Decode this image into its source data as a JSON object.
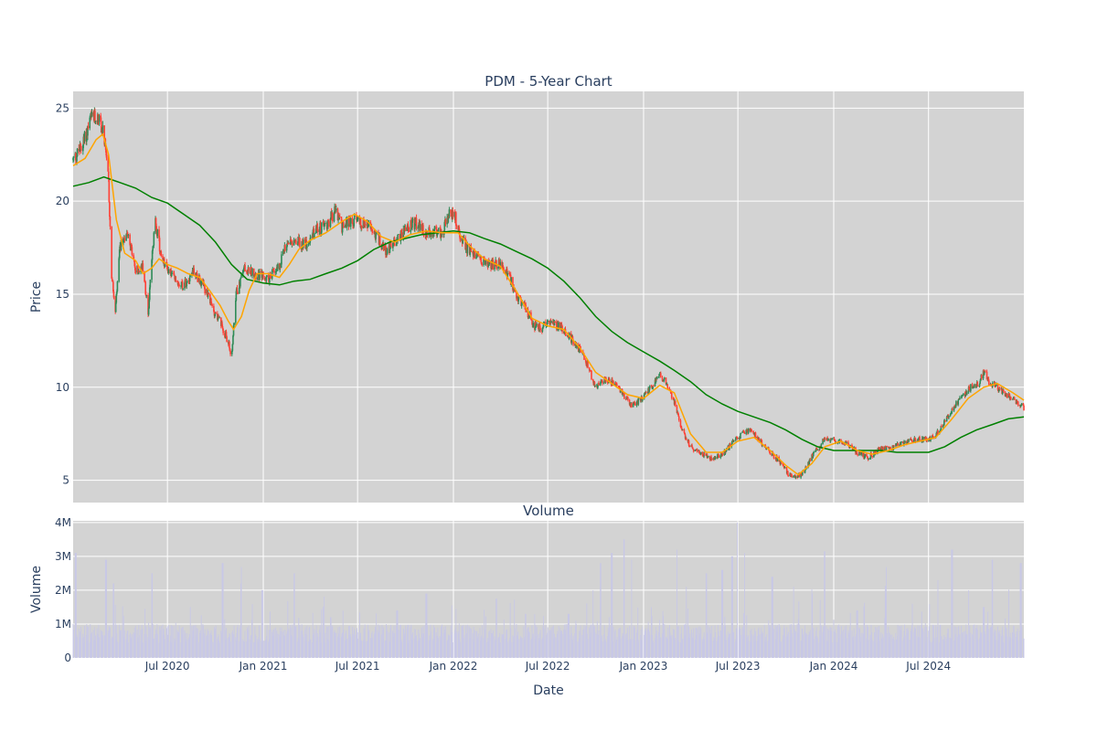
{
  "chart_data": [
    {
      "type": "candlestick",
      "title": "PDM - 5-Year Chart",
      "xlabel": "",
      "ylabel": "Price",
      "ylim": [
        3.8,
        25.9
      ],
      "yticks": [
        5,
        10,
        15,
        20,
        25
      ],
      "xrange": [
        "2020-01-02",
        "2024-12-31"
      ],
      "grid": true,
      "background": "#d3d3d3",
      "colors": {
        "up": "#2e8b57",
        "down": "#ff4136",
        "ma_short": "#ffa500",
        "ma_long": "#008000"
      },
      "close_path": [
        [
          "2020-01-02",
          22.2
        ],
        [
          "2020-01-20",
          23.0
        ],
        [
          "2020-02-05",
          24.4
        ],
        [
          "2020-02-20",
          24.5
        ],
        [
          "2020-03-01",
          23.5
        ],
        [
          "2020-03-10",
          21.0
        ],
        [
          "2020-03-16",
          16.0
        ],
        [
          "2020-03-23",
          14.0
        ],
        [
          "2020-04-01",
          17.5
        ],
        [
          "2020-04-15",
          18.5
        ],
        [
          "2020-05-01",
          16.2
        ],
        [
          "2020-05-15",
          16.5
        ],
        [
          "2020-05-25",
          14.0
        ],
        [
          "2020-06-01",
          16.8
        ],
        [
          "2020-06-08",
          19.0
        ],
        [
          "2020-06-20",
          16.8
        ],
        [
          "2020-07-01",
          16.4
        ],
        [
          "2020-07-15",
          15.8
        ],
        [
          "2020-08-01",
          15.5
        ],
        [
          "2020-08-20",
          16.3
        ],
        [
          "2020-09-10",
          15.3
        ],
        [
          "2020-09-25",
          14.3
        ],
        [
          "2020-10-10",
          13.5
        ],
        [
          "2020-10-25",
          12.5
        ],
        [
          "2020-11-01",
          11.6
        ],
        [
          "2020-11-10",
          15.0
        ],
        [
          "2020-11-25",
          16.4
        ],
        [
          "2020-12-10",
          16.2
        ],
        [
          "2020-12-25",
          16.0
        ],
        [
          "2021-01-10",
          15.8
        ],
        [
          "2021-02-01",
          16.6
        ],
        [
          "2021-02-15",
          17.8
        ],
        [
          "2021-03-01",
          18.0
        ],
        [
          "2021-03-20",
          17.6
        ],
        [
          "2021-04-10",
          18.4
        ],
        [
          "2021-05-01",
          18.7
        ],
        [
          "2021-05-20",
          19.5
        ],
        [
          "2021-06-01",
          18.6
        ],
        [
          "2021-06-20",
          19.0
        ],
        [
          "2021-07-10",
          18.8
        ],
        [
          "2021-07-25",
          18.6
        ],
        [
          "2021-08-10",
          18.0
        ],
        [
          "2021-08-25",
          17.3
        ],
        [
          "2021-09-10",
          17.8
        ],
        [
          "2021-10-01",
          18.5
        ],
        [
          "2021-10-20",
          18.8
        ],
        [
          "2021-11-10",
          18.2
        ],
        [
          "2021-11-25",
          18.4
        ],
        [
          "2021-12-10",
          18.3
        ],
        [
          "2021-12-25",
          19.3
        ],
        [
          "2022-01-05",
          19.1
        ],
        [
          "2022-01-15",
          18.0
        ],
        [
          "2022-02-01",
          17.3
        ],
        [
          "2022-02-20",
          17.0
        ],
        [
          "2022-03-10",
          16.5
        ],
        [
          "2022-04-01",
          16.7
        ],
        [
          "2022-04-20",
          15.8
        ],
        [
          "2022-05-05",
          14.8
        ],
        [
          "2022-05-20",
          14.2
        ],
        [
          "2022-06-05",
          13.3
        ],
        [
          "2022-06-20",
          13.2
        ],
        [
          "2022-07-05",
          13.6
        ],
        [
          "2022-07-20",
          13.3
        ],
        [
          "2022-08-05",
          13.0
        ],
        [
          "2022-08-20",
          12.4
        ],
        [
          "2022-09-01",
          12.0
        ],
        [
          "2022-09-15",
          11.2
        ],
        [
          "2022-10-01",
          10.0
        ],
        [
          "2022-10-20",
          10.4
        ],
        [
          "2022-11-10",
          10.2
        ],
        [
          "2022-11-25",
          9.5
        ],
        [
          "2022-12-10",
          9.0
        ],
        [
          "2022-12-25",
          9.3
        ],
        [
          "2023-01-10",
          9.8
        ],
        [
          "2023-02-01",
          10.6
        ],
        [
          "2023-02-15",
          10.2
        ],
        [
          "2023-03-01",
          9.2
        ],
        [
          "2023-03-15",
          7.8
        ],
        [
          "2023-04-01",
          6.8
        ],
        [
          "2023-04-20",
          6.5
        ],
        [
          "2023-05-10",
          6.2
        ],
        [
          "2023-06-01",
          6.4
        ],
        [
          "2023-06-20",
          7.0
        ],
        [
          "2023-07-10",
          7.5
        ],
        [
          "2023-07-25",
          7.7
        ],
        [
          "2023-08-10",
          7.2
        ],
        [
          "2023-09-01",
          6.5
        ],
        [
          "2023-09-20",
          6.0
        ],
        [
          "2023-10-05",
          5.4
        ],
        [
          "2023-10-20",
          5.1
        ],
        [
          "2023-11-05",
          5.5
        ],
        [
          "2023-11-20",
          6.3
        ],
        [
          "2023-12-05",
          6.8
        ],
        [
          "2023-12-15",
          7.3
        ],
        [
          "2024-01-05",
          7.1
        ],
        [
          "2024-01-25",
          7.0
        ],
        [
          "2024-02-15",
          6.5
        ],
        [
          "2024-03-05",
          6.2
        ],
        [
          "2024-03-25",
          6.6
        ],
        [
          "2024-04-15",
          6.7
        ],
        [
          "2024-05-05",
          6.9
        ],
        [
          "2024-05-25",
          7.1
        ],
        [
          "2024-06-15",
          7.2
        ],
        [
          "2024-07-05",
          7.2
        ],
        [
          "2024-07-25",
          7.8
        ],
        [
          "2024-08-15",
          8.8
        ],
        [
          "2024-09-01",
          9.4
        ],
        [
          "2024-09-20",
          10.0
        ],
        [
          "2024-10-05",
          10.2
        ],
        [
          "2024-10-15",
          10.8
        ],
        [
          "2024-10-25",
          10.3
        ],
        [
          "2024-11-10",
          10.0
        ],
        [
          "2024-11-25",
          9.6
        ],
        [
          "2024-12-10",
          9.4
        ],
        [
          "2024-12-31",
          8.9
        ]
      ],
      "ma_short": [
        [
          "2020-01-02",
          21.9
        ],
        [
          "2020-01-25",
          22.3
        ],
        [
          "2020-02-15",
          23.3
        ],
        [
          "2020-02-28",
          23.6
        ],
        [
          "2020-03-10",
          22.5
        ],
        [
          "2020-03-25",
          19.0
        ],
        [
          "2020-04-10",
          17.2
        ],
        [
          "2020-05-01",
          16.8
        ],
        [
          "2020-05-15",
          16.1
        ],
        [
          "2020-06-01",
          16.4
        ],
        [
          "2020-06-15",
          16.9
        ],
        [
          "2020-07-01",
          16.6
        ],
        [
          "2020-07-20",
          16.4
        ],
        [
          "2020-08-10",
          16.1
        ],
        [
          "2020-09-01",
          15.9
        ],
        [
          "2020-09-20",
          15.2
        ],
        [
          "2020-10-10",
          14.4
        ],
        [
          "2020-10-25",
          13.6
        ],
        [
          "2020-11-05",
          13.1
        ],
        [
          "2020-11-20",
          13.8
        ],
        [
          "2020-12-05",
          15.2
        ],
        [
          "2020-12-20",
          16.1
        ],
        [
          "2021-01-10",
          16.1
        ],
        [
          "2021-02-01",
          15.9
        ],
        [
          "2021-02-20",
          16.6
        ],
        [
          "2021-03-10",
          17.4
        ],
        [
          "2021-04-01",
          17.9
        ],
        [
          "2021-05-01",
          18.3
        ],
        [
          "2021-06-01",
          18.9
        ],
        [
          "2021-06-25",
          19.3
        ],
        [
          "2021-07-20",
          18.9
        ],
        [
          "2021-08-15",
          18.1
        ],
        [
          "2021-09-10",
          17.8
        ],
        [
          "2021-10-10",
          18.2
        ],
        [
          "2021-11-10",
          18.4
        ],
        [
          "2021-12-10",
          18.3
        ],
        [
          "2022-01-10",
          18.3
        ],
        [
          "2022-02-01",
          17.6
        ],
        [
          "2022-03-01",
          16.9
        ],
        [
          "2022-04-01",
          16.5
        ],
        [
          "2022-05-01",
          15.2
        ],
        [
          "2022-06-01",
          13.7
        ],
        [
          "2022-07-01",
          13.3
        ],
        [
          "2022-08-01",
          13.1
        ],
        [
          "2022-09-01",
          12.1
        ],
        [
          "2022-10-01",
          10.8
        ],
        [
          "2022-11-01",
          10.2
        ],
        [
          "2022-12-01",
          9.6
        ],
        [
          "2023-01-01",
          9.4
        ],
        [
          "2023-02-01",
          10.1
        ],
        [
          "2023-03-01",
          9.7
        ],
        [
          "2023-04-01",
          7.5
        ],
        [
          "2023-05-01",
          6.5
        ],
        [
          "2023-06-01",
          6.5
        ],
        [
          "2023-07-01",
          7.1
        ],
        [
          "2023-08-01",
          7.3
        ],
        [
          "2023-09-01",
          6.6
        ],
        [
          "2023-10-01",
          5.8
        ],
        [
          "2023-10-25",
          5.3
        ],
        [
          "2023-11-20",
          5.9
        ],
        [
          "2023-12-15",
          6.8
        ],
        [
          "2024-01-15",
          7.1
        ],
        [
          "2024-02-15",
          6.6
        ],
        [
          "2024-03-15",
          6.4
        ],
        [
          "2024-04-15",
          6.6
        ],
        [
          "2024-05-15",
          6.9
        ],
        [
          "2024-06-15",
          7.1
        ],
        [
          "2024-07-15",
          7.3
        ],
        [
          "2024-08-15",
          8.3
        ],
        [
          "2024-09-15",
          9.4
        ],
        [
          "2024-10-15",
          10.0
        ],
        [
          "2024-11-10",
          10.2
        ],
        [
          "2024-12-10",
          9.7
        ],
        [
          "2024-12-31",
          9.3
        ]
      ],
      "ma_long": [
        [
          "2020-01-02",
          20.8
        ],
        [
          "2020-02-01",
          21.0
        ],
        [
          "2020-03-01",
          21.3
        ],
        [
          "2020-04-01",
          21.0
        ],
        [
          "2020-05-01",
          20.7
        ],
        [
          "2020-06-01",
          20.2
        ],
        [
          "2020-07-01",
          19.9
        ],
        [
          "2020-08-01",
          19.3
        ],
        [
          "2020-09-01",
          18.7
        ],
        [
          "2020-10-01",
          17.8
        ],
        [
          "2020-11-01",
          16.6
        ],
        [
          "2020-12-01",
          15.8
        ],
        [
          "2021-01-01",
          15.6
        ],
        [
          "2021-02-01",
          15.5
        ],
        [
          "2021-03-01",
          15.7
        ],
        [
          "2021-04-01",
          15.8
        ],
        [
          "2021-05-01",
          16.1
        ],
        [
          "2021-06-01",
          16.4
        ],
        [
          "2021-07-01",
          16.8
        ],
        [
          "2021-08-01",
          17.4
        ],
        [
          "2021-09-01",
          17.8
        ],
        [
          "2021-10-01",
          18.0
        ],
        [
          "2021-11-01",
          18.2
        ],
        [
          "2021-12-01",
          18.3
        ],
        [
          "2022-01-01",
          18.4
        ],
        [
          "2022-02-01",
          18.3
        ],
        [
          "2022-03-01",
          18.0
        ],
        [
          "2022-04-01",
          17.7
        ],
        [
          "2022-05-01",
          17.3
        ],
        [
          "2022-06-01",
          16.9
        ],
        [
          "2022-07-01",
          16.4
        ],
        [
          "2022-08-01",
          15.7
        ],
        [
          "2022-09-01",
          14.8
        ],
        [
          "2022-10-01",
          13.8
        ],
        [
          "2022-11-01",
          13.0
        ],
        [
          "2022-12-01",
          12.4
        ],
        [
          "2023-01-01",
          11.9
        ],
        [
          "2023-02-01",
          11.4
        ],
        [
          "2023-03-01",
          10.9
        ],
        [
          "2023-04-01",
          10.3
        ],
        [
          "2023-05-01",
          9.6
        ],
        [
          "2023-06-01",
          9.1
        ],
        [
          "2023-07-01",
          8.7
        ],
        [
          "2023-08-01",
          8.4
        ],
        [
          "2023-09-01",
          8.1
        ],
        [
          "2023-10-01",
          7.7
        ],
        [
          "2023-11-01",
          7.2
        ],
        [
          "2023-12-01",
          6.8
        ],
        [
          "2024-01-01",
          6.6
        ],
        [
          "2024-02-01",
          6.6
        ],
        [
          "2024-03-01",
          6.6
        ],
        [
          "2024-04-01",
          6.6
        ],
        [
          "2024-05-01",
          6.5
        ],
        [
          "2024-06-01",
          6.5
        ],
        [
          "2024-07-01",
          6.5
        ],
        [
          "2024-08-01",
          6.8
        ],
        [
          "2024-09-01",
          7.3
        ],
        [
          "2024-10-01",
          7.7
        ],
        [
          "2024-11-01",
          8.0
        ],
        [
          "2024-12-01",
          8.3
        ],
        [
          "2024-12-31",
          8.4
        ]
      ]
    },
    {
      "type": "bar",
      "title": "Volume",
      "xlabel": "Date",
      "ylabel": "Volume",
      "ylim": [
        0,
        4050000
      ],
      "yticks": [
        [
          0,
          "0"
        ],
        [
          1000000,
          "1M"
        ],
        [
          2000000,
          "2M"
        ],
        [
          3000000,
          "3M"
        ],
        [
          4000000,
          "4M"
        ]
      ],
      "xticks": [
        [
          "2020-07-01",
          "Jul 2020"
        ],
        [
          "2021-01-01",
          "Jan 2021"
        ],
        [
          "2021-07-01",
          "Jul 2021"
        ],
        [
          "2022-01-01",
          "Jan 2022"
        ],
        [
          "2022-07-01",
          "Jul 2022"
        ],
        [
          "2023-01-01",
          "Jan 2023"
        ],
        [
          "2023-07-01",
          "Jul 2023"
        ],
        [
          "2024-01-01",
          "Jan 2024"
        ],
        [
          "2024-07-01",
          "Jul 2024"
        ]
      ],
      "bar_color": "#c8c8e6",
      "background": "#d3d3d3",
      "spikes": [
        [
          "2020-01-07",
          3100000
        ],
        [
          "2020-03-05",
          2900000
        ],
        [
          "2020-03-20",
          2200000
        ],
        [
          "2020-06-01",
          2500000
        ],
        [
          "2020-08-15",
          1500000
        ],
        [
          "2020-10-15",
          2800000
        ],
        [
          "2020-11-20",
          2200000
        ],
        [
          "2020-12-30",
          2000000
        ],
        [
          "2021-03-01",
          2500000
        ],
        [
          "2021-05-10",
          1200000
        ],
        [
          "2021-09-15",
          1400000
        ],
        [
          "2021-11-10",
          1900000
        ],
        [
          "2022-03-25",
          1750000
        ],
        [
          "2022-05-20",
          1300000
        ],
        [
          "2022-08-10",
          1300000
        ],
        [
          "2022-09-25",
          2000000
        ],
        [
          "2022-10-10",
          2800000
        ],
        [
          "2022-11-01",
          3100000
        ],
        [
          "2022-11-25",
          3500000
        ],
        [
          "2022-12-10",
          2900000
        ],
        [
          "2023-01-15",
          1500000
        ],
        [
          "2023-03-05",
          3200000
        ],
        [
          "2023-03-25",
          2100000
        ],
        [
          "2023-05-01",
          2500000
        ],
        [
          "2023-06-01",
          2600000
        ],
        [
          "2023-06-20",
          3000000
        ],
        [
          "2023-07-01",
          4000000
        ],
        [
          "2023-07-15",
          3100000
        ],
        [
          "2023-09-05",
          2400000
        ],
        [
          "2023-10-15",
          2100000
        ],
        [
          "2023-11-20",
          1900000
        ],
        [
          "2023-12-15",
          3150000
        ],
        [
          "2024-02-15",
          1400000
        ],
        [
          "2024-04-10",
          1900000
        ],
        [
          "2024-06-01",
          1600000
        ],
        [
          "2024-07-20",
          2300000
        ],
        [
          "2024-08-15",
          3200000
        ],
        [
          "2024-09-15",
          2000000
        ],
        [
          "2024-10-15",
          1500000
        ],
        [
          "2024-11-01",
          2900000
        ],
        [
          "2024-12-01",
          1900000
        ],
        [
          "2024-12-25",
          2800000
        ]
      ]
    }
  ]
}
